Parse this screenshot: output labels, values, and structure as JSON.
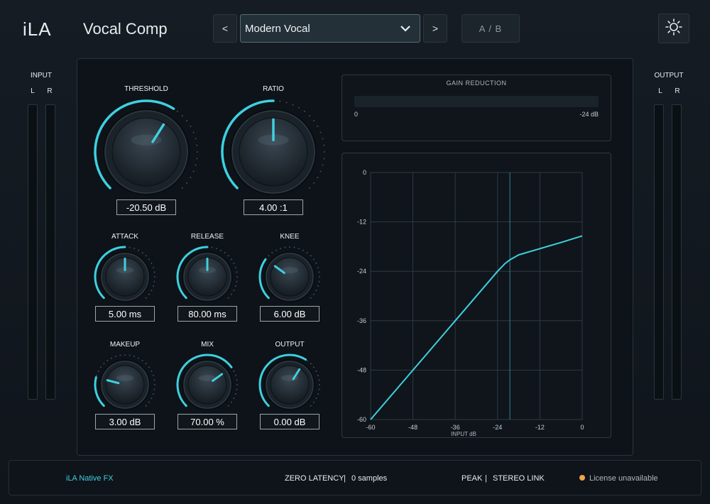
{
  "header": {
    "brand": "iLA",
    "title": "Vocal Comp",
    "prev_label": "<",
    "next_label": ">",
    "preset": "Modern Vocal",
    "ab_label": "A / B"
  },
  "input_meter": {
    "title": "INPUT",
    "left": "L",
    "right": "R"
  },
  "output_meter": {
    "title": "OUTPUT",
    "left": "L",
    "right": "R"
  },
  "knobs": {
    "threshold": {
      "label": "THRESHOLD",
      "value": "-20.50 dB",
      "level": 0.62
    },
    "ratio": {
      "label": "RATIO",
      "value": "4.00 :1",
      "level": 0.5
    },
    "attack": {
      "label": "ATTACK",
      "value": "5.00 ms",
      "level": 0.5
    },
    "release": {
      "label": "RELEASE",
      "value": "80.00 ms",
      "level": 0.5
    },
    "knee": {
      "label": "KNEE",
      "value": "6.00 dB",
      "level": 0.3
    },
    "makeup": {
      "label": "MAKEUP",
      "value": "3.00 dB",
      "level": 0.22
    },
    "mix": {
      "label": "MIX",
      "value": "70.00 %",
      "level": 0.7
    },
    "output": {
      "label": "OUTPUT",
      "value": "0.00 dB",
      "level": 0.62
    }
  },
  "gain_reduction": {
    "title": "GAIN REDUCTION",
    "min_label": "0",
    "max_label": "-24 dB",
    "level": 0.0
  },
  "chart_data": {
    "type": "line",
    "xlabel": "INPUT dB",
    "ylabel": "",
    "xlim": [
      -60,
      0
    ],
    "ylim": [
      -60,
      0
    ],
    "x_ticks": [
      -60,
      -48,
      -36,
      -24,
      -12,
      0
    ],
    "y_ticks": [
      0,
      -12,
      -24,
      -36,
      -48,
      -60
    ],
    "threshold": -20.5,
    "grid": true,
    "series": [
      {
        "x": [
          -60,
          -48,
          -36,
          -24,
          -22,
          -20.5,
          -18,
          -12,
          -6,
          0
        ],
        "y": [
          -60,
          -48,
          -36,
          -24,
          -22.2,
          -21.2,
          -20.0,
          -18.5,
          -17.0,
          -15.4
        ]
      }
    ],
    "colors": {
      "line": "#3ed0e0",
      "grid": "#2e3a44",
      "threshold": "#2d6f80"
    }
  },
  "footer": {
    "brand": "iLA  Native FX",
    "latency_label": "ZERO LATENCY",
    "latency_sep": "|",
    "latency_value": "0 samples",
    "mode": "PEAK",
    "mode_sep": "|",
    "link": "STEREO LINK",
    "license": "License unavailable",
    "license_color": "#f0a64a"
  },
  "colors": {
    "accent": "#3ed0e0",
    "background": "#10161c"
  },
  "icons": {
    "settings": "sun-gear-icon",
    "dropdown": "chevron-down-icon"
  }
}
